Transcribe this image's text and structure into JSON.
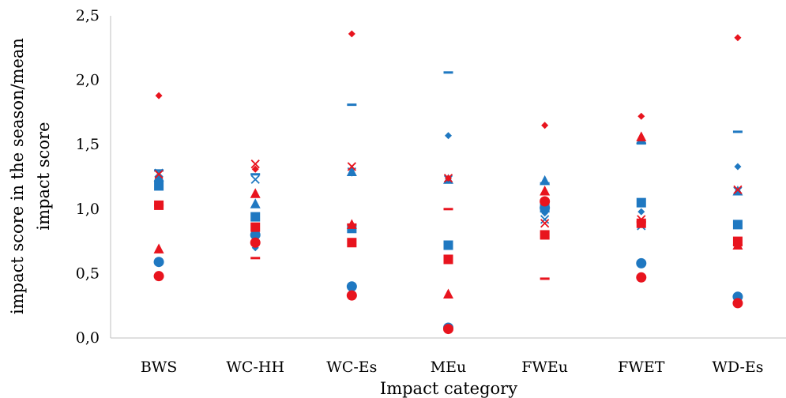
{
  "chart_data": {
    "type": "scatter",
    "title": "",
    "xlabel": "Impact category",
    "ylabel_lines": [
      "impact score in the season/mean",
      "impact score"
    ],
    "categories": [
      "BWS",
      "WC-HH",
      "WC-Es",
      "MEu",
      "FWEu",
      "FWET",
      "WD-Es"
    ],
    "ylim": [
      0,
      2.5
    ],
    "ytick_step": 0.5,
    "ytick_labels": [
      "0,0",
      "0,5",
      "1,0",
      "1,5",
      "2,0",
      "2,5"
    ],
    "grid": false,
    "legend": "none",
    "colors": {
      "blue": "#1f78c1",
      "red": "#e8141e",
      "axis": "#bfbfbf"
    },
    "series": [
      {
        "color": "blue",
        "marker": "diamond",
        "values": [
          1.24,
          0.7,
          1.28,
          1.57,
          0.97,
          0.98,
          1.33
        ]
      },
      {
        "color": "blue",
        "marker": "square",
        "values": [
          1.18,
          0.94,
          0.85,
          0.72,
          1.01,
          1.05,
          0.88
        ]
      },
      {
        "color": "blue",
        "marker": "triangle",
        "values": [
          1.25,
          1.04,
          1.29,
          1.23,
          1.22,
          1.54,
          1.14
        ]
      },
      {
        "color": "blue",
        "marker": "x",
        "values": [
          1.28,
          1.23,
          1.29,
          1.23,
          0.92,
          0.87,
          1.14
        ]
      },
      {
        "color": "blue",
        "marker": "dash",
        "values": [
          1.3,
          1.27,
          1.81,
          2.06,
          1.2,
          1.51,
          1.6
        ]
      },
      {
        "color": "blue",
        "marker": "circle",
        "values": [
          0.59,
          0.8,
          0.4,
          0.08,
          1.01,
          0.58,
          0.32
        ]
      },
      {
        "color": "red",
        "marker": "diamond",
        "values": [
          1.88,
          1.31,
          2.36,
          1.24,
          1.65,
          1.72,
          2.33
        ]
      },
      {
        "color": "red",
        "marker": "square",
        "values": [
          1.03,
          0.86,
          0.74,
          0.61,
          0.8,
          0.89,
          0.75
        ]
      },
      {
        "color": "red",
        "marker": "triangle",
        "values": [
          0.69,
          1.12,
          0.88,
          0.34,
          1.14,
          1.56,
          0.72
        ]
      },
      {
        "color": "red",
        "marker": "x",
        "values": [
          1.27,
          1.35,
          1.33,
          1.24,
          0.89,
          0.92,
          1.15
        ]
      },
      {
        "color": "red",
        "marker": "dash",
        "values": [
          1.03,
          0.62,
          0.88,
          1.0,
          0.46,
          0.9,
          0.72
        ]
      },
      {
        "color": "red",
        "marker": "circle",
        "values": [
          0.48,
          0.74,
          0.33,
          0.07,
          1.06,
          0.47,
          0.27
        ]
      }
    ]
  }
}
